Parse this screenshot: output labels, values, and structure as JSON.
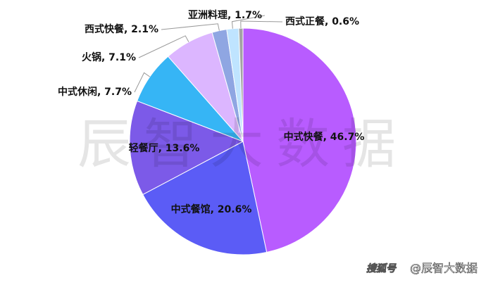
{
  "chart_data": {
    "type": "pie",
    "values": [
      46.7,
      20.6,
      13.6,
      7.7,
      7.1,
      2.1,
      1.7,
      0.6
    ],
    "value_labels": [
      "中式快餐, 46.7%",
      "中式餐馆, 20.6%",
      "轻餐厅, 13.6%",
      "中式休闲, 7.7%",
      "火锅, 7.1%",
      "西式快餐, 2.1%",
      "亚洲料理, 1.7%",
      "西式正餐, 0.6%"
    ],
    "colors": [
      "#b85cff",
      "#5b5cf6",
      "#7c5ae8",
      "#36b5f5",
      "#dcb6ff",
      "#8fa6e2",
      "#bfe4ff",
      "#a3a3a3"
    ],
    "watermark": "辰智大数据",
    "footer": "@辰智大数据",
    "footer_logo": "搜狐号"
  }
}
